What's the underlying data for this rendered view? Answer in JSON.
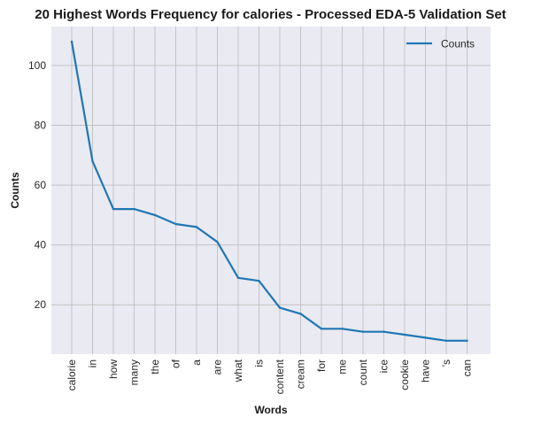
{
  "chart_data": {
    "type": "line",
    "title": "20 Highest Words Frequency for calories - Processed EDA-5 Validation Set",
    "xlabel": "Words",
    "ylabel": "Counts",
    "categories": [
      "calorie",
      "in",
      "how",
      "many",
      "the",
      "of",
      "a",
      "are",
      "what",
      "is",
      "content",
      "cream",
      "for",
      "me",
      "count",
      "ice",
      "cookie",
      "have",
      "'s",
      "can"
    ],
    "series": [
      {
        "name": "Counts",
        "values": [
          108,
          68,
          52,
          52,
          50,
          47,
          46,
          41,
          29,
          28,
          19,
          17,
          12,
          12,
          11,
          11,
          10,
          9,
          8,
          8
        ]
      }
    ],
    "yticks": [
      20,
      40,
      60,
      80,
      100
    ],
    "ylim": [
      3.5,
      113
    ],
    "grid": true,
    "legend_position": "top-right",
    "colors": {
      "line": "#1f77b4",
      "background": "#eaeaf2",
      "grid": "#c0c0c0"
    }
  }
}
